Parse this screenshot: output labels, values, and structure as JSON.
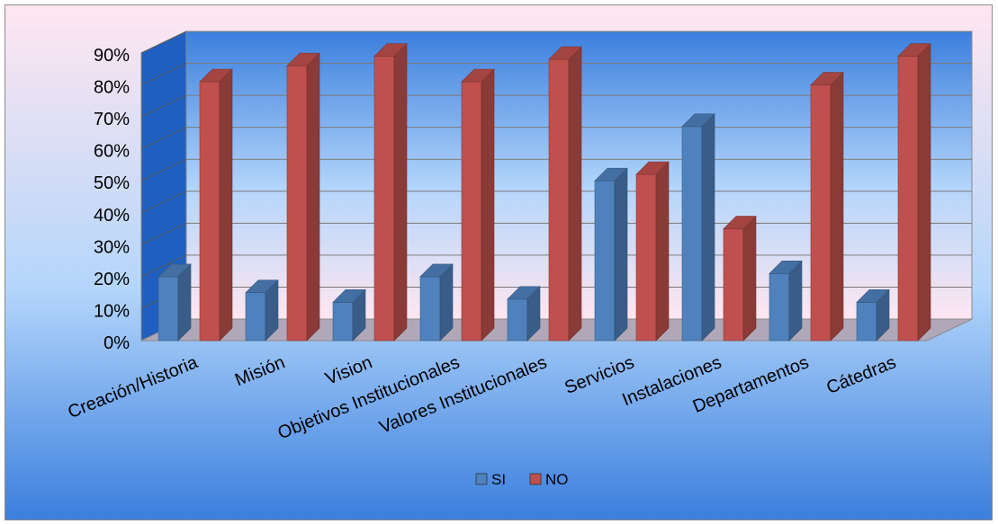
{
  "chart_data": {
    "type": "bar",
    "categories": [
      "Creación/Historia",
      "Misión",
      "Vision",
      "Objetivos Institucionales",
      "Valores Institucionales",
      "Servicios",
      "Instalaciones",
      "Departamentos",
      "Cátedras"
    ],
    "series": [
      {
        "name": "SI",
        "values": [
          20,
          15,
          12,
          20,
          13,
          50,
          67,
          21,
          12
        ]
      },
      {
        "name": "NO",
        "values": [
          81,
          86,
          89,
          81,
          88,
          52,
          35,
          80,
          89
        ]
      }
    ],
    "yticks": [
      "0%",
      "10%",
      "20%",
      "30%",
      "40%",
      "50%",
      "60%",
      "70%",
      "80%",
      "90%"
    ],
    "ylim": [
      0,
      90
    ],
    "unit": "%",
    "grid": true,
    "legend_position": "bottom",
    "three_d": true,
    "colors": {
      "SI": "#4f81bd",
      "NO": "#c0504d",
      "plot_background_top": "#3b7fde",
      "plot_background_mid": "#b4d6fb",
      "plot_background_bottom": "#ffe6f0"
    }
  }
}
